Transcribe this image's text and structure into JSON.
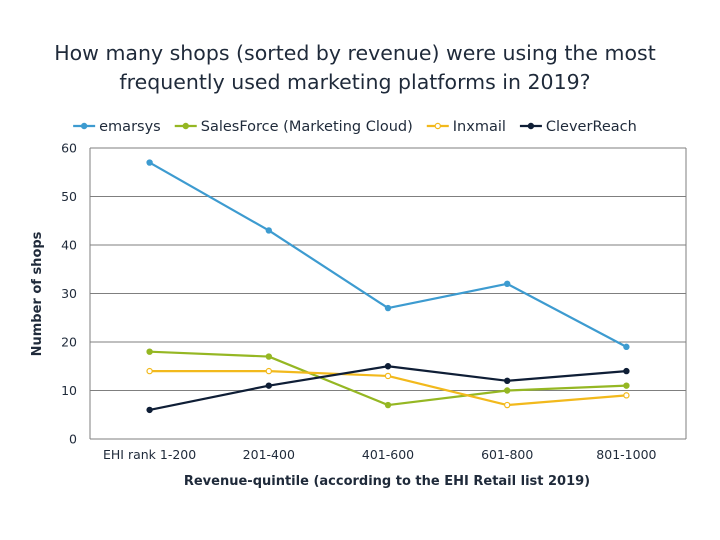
{
  "chart_data": {
    "type": "line",
    "title": "How many shops (sorted by revenue) were using the most frequently used marketing platforms in 2019?",
    "title_lines": [
      "How many shops (sorted by revenue) were using the most",
      "frequently used marketing platforms in 2019?"
    ],
    "xlabel": "Revenue-quintile (according to the EHI Retail list 2019)",
    "ylabel": "Number of shops",
    "categories": [
      "EHI rank 1-200",
      "201-400",
      "401-600",
      "601-800",
      "801-1000"
    ],
    "ylim": [
      0,
      60
    ],
    "yticks": [
      0,
      10,
      20,
      30,
      40,
      50,
      60
    ],
    "grid": true,
    "legend_position": "top",
    "series": [
      {
        "name": "emarsys",
        "color": "#3d9bd0",
        "marker": "filled",
        "values": [
          57,
          43,
          27,
          32,
          19
        ]
      },
      {
        "name": "SalesForce (Marketing Cloud)",
        "color": "#95b723",
        "marker": "filled",
        "values": [
          18,
          17,
          7,
          10,
          11
        ]
      },
      {
        "name": "Inxmail",
        "color": "#f2b91c",
        "marker": "hollow",
        "values": [
          14,
          14,
          13,
          7,
          9
        ]
      },
      {
        "name": "CleverReach",
        "color": "#0f1e36",
        "marker": "filled",
        "values": [
          6,
          11,
          15,
          12,
          14
        ]
      }
    ]
  }
}
